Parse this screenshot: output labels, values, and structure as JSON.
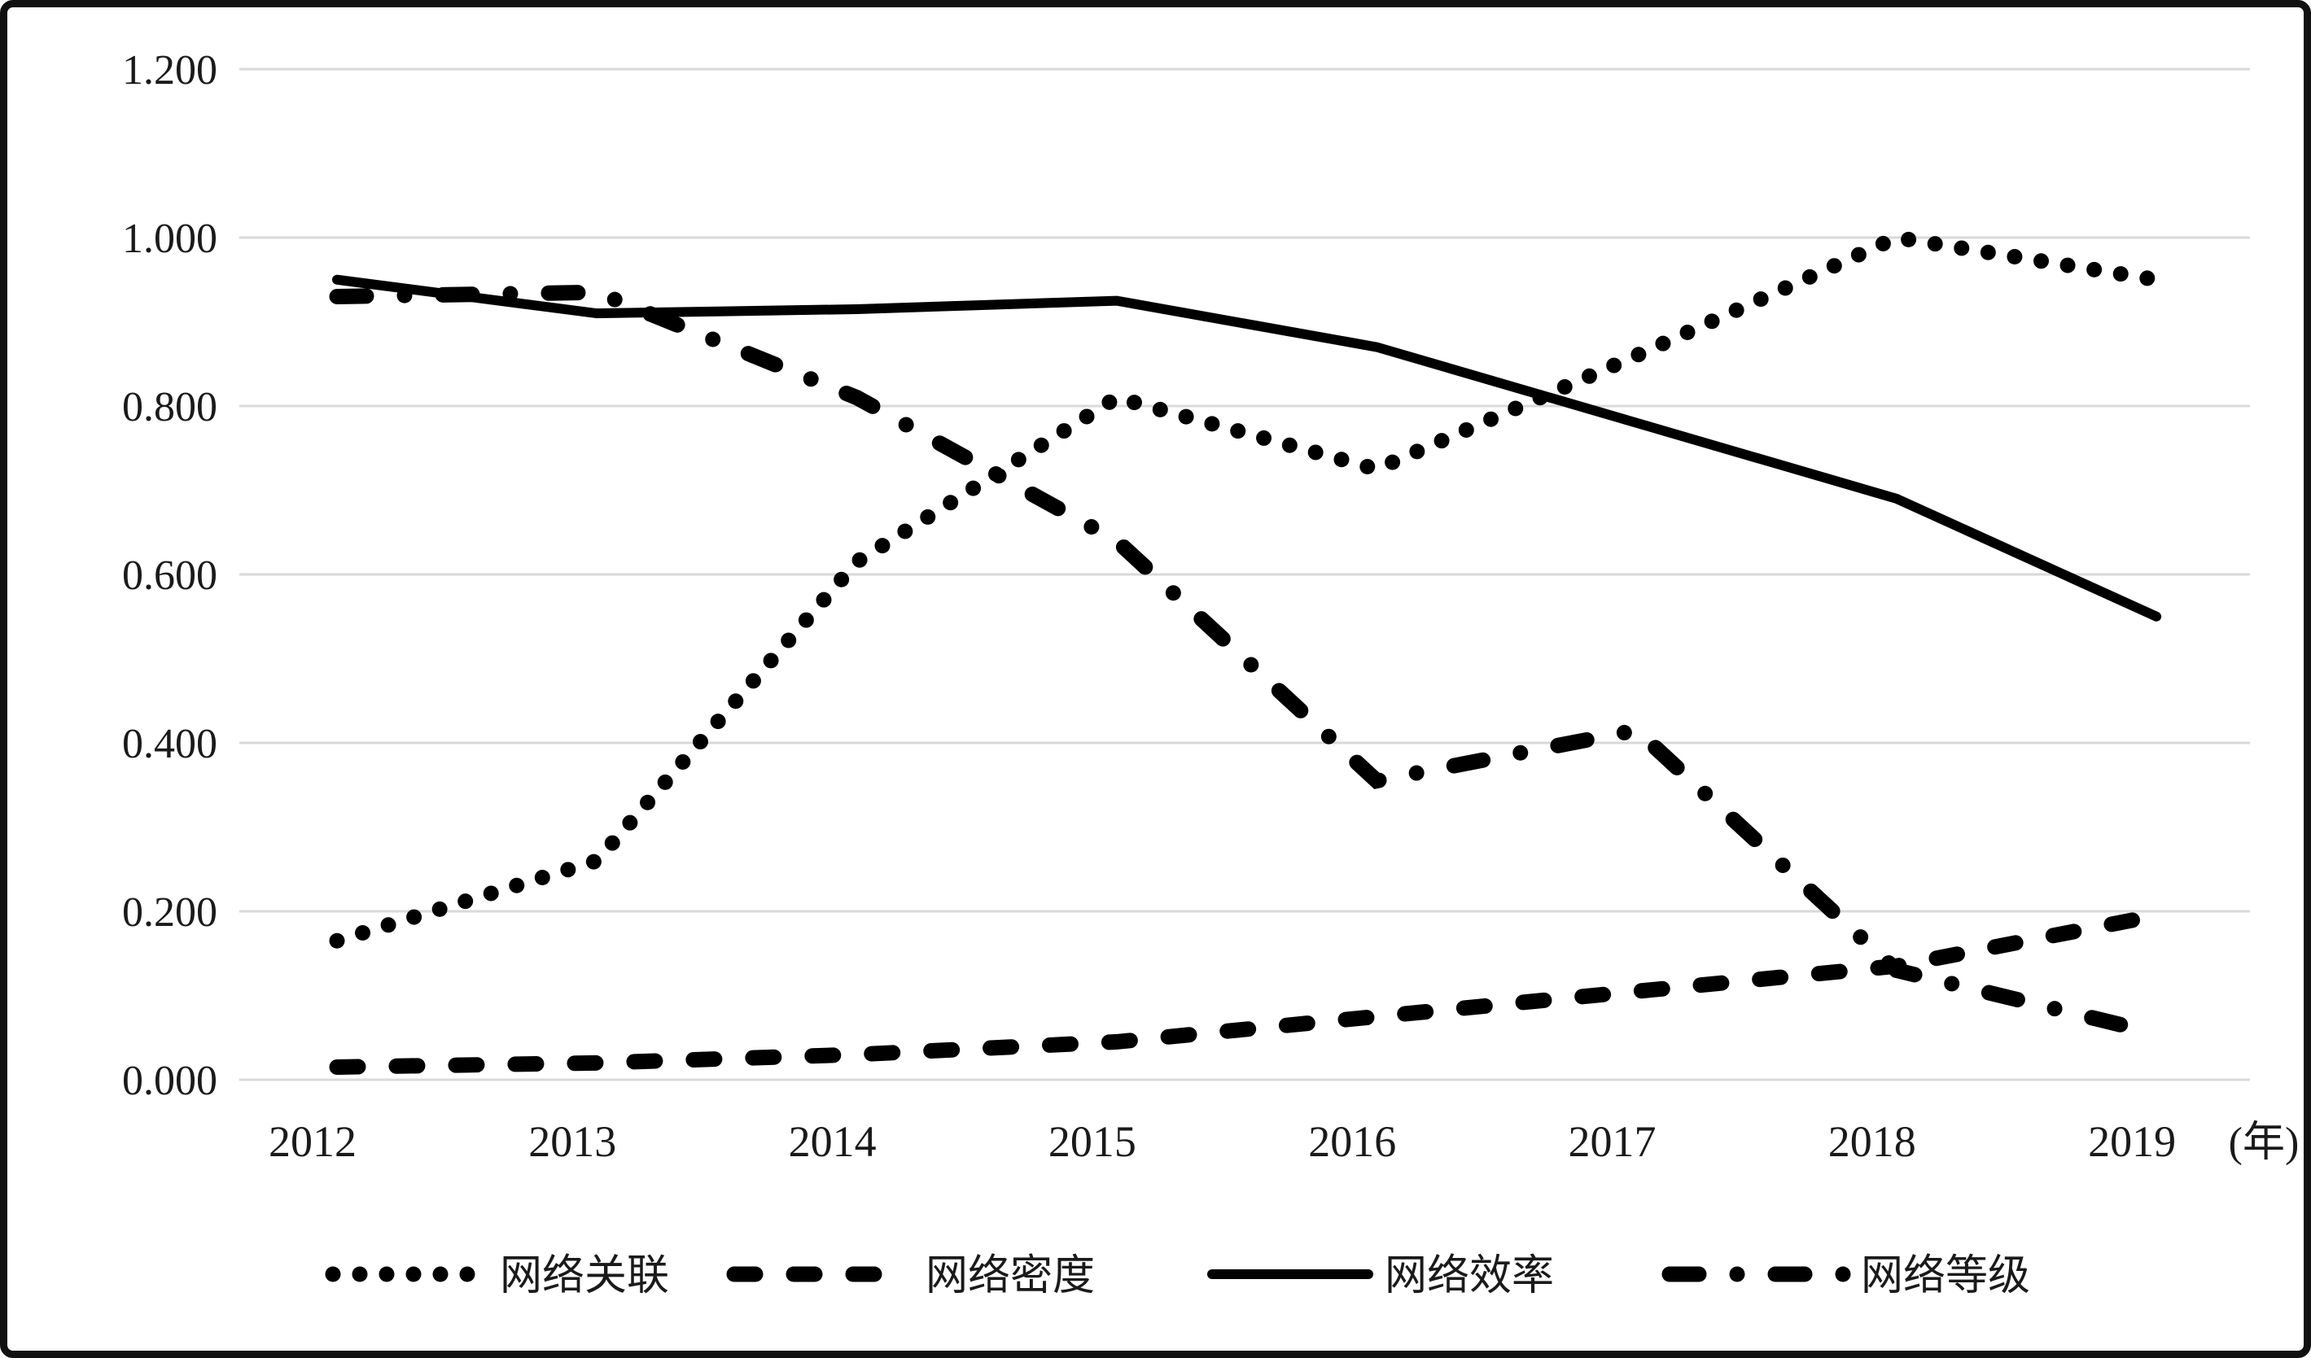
{
  "frame": {
    "border_color": "#111111",
    "background_color": "#ffffff"
  },
  "chart_data": {
    "type": "line",
    "title": "",
    "xlabel": "",
    "ylabel": "",
    "x_unit_label": "(年)",
    "categories": [
      "2012",
      "2013",
      "2014",
      "2015",
      "2016",
      "2017",
      "2018",
      "2019"
    ],
    "y_tick_labels": [
      "0.000",
      "0.200",
      "0.400",
      "0.600",
      "0.800",
      "1.000",
      "1.200"
    ],
    "ylim": [
      0,
      1.2
    ],
    "y_step": 0.2,
    "grid": "horizontal",
    "grid_color": "#d9d9d9",
    "line_color": "#000000",
    "legend_position": "bottom",
    "series": [
      {
        "name": "网络关联",
        "style": "dotted",
        "values": [
          0.165,
          0.26,
          0.615,
          0.81,
          0.725,
          0.86,
          1.0,
          0.95
        ]
      },
      {
        "name": "网络密度",
        "style": "dashed",
        "values": [
          0.015,
          0.02,
          0.03,
          0.045,
          0.075,
          0.105,
          0.135,
          0.195
        ]
      },
      {
        "name": "网络效率",
        "style": "solid",
        "values": [
          0.95,
          0.91,
          0.915,
          0.925,
          0.87,
          0.78,
          0.69,
          0.55
        ]
      },
      {
        "name": "网络等级",
        "style": "dashdot",
        "values": [
          0.93,
          0.935,
          0.81,
          0.64,
          0.355,
          0.415,
          0.13,
          0.055
        ]
      }
    ]
  }
}
